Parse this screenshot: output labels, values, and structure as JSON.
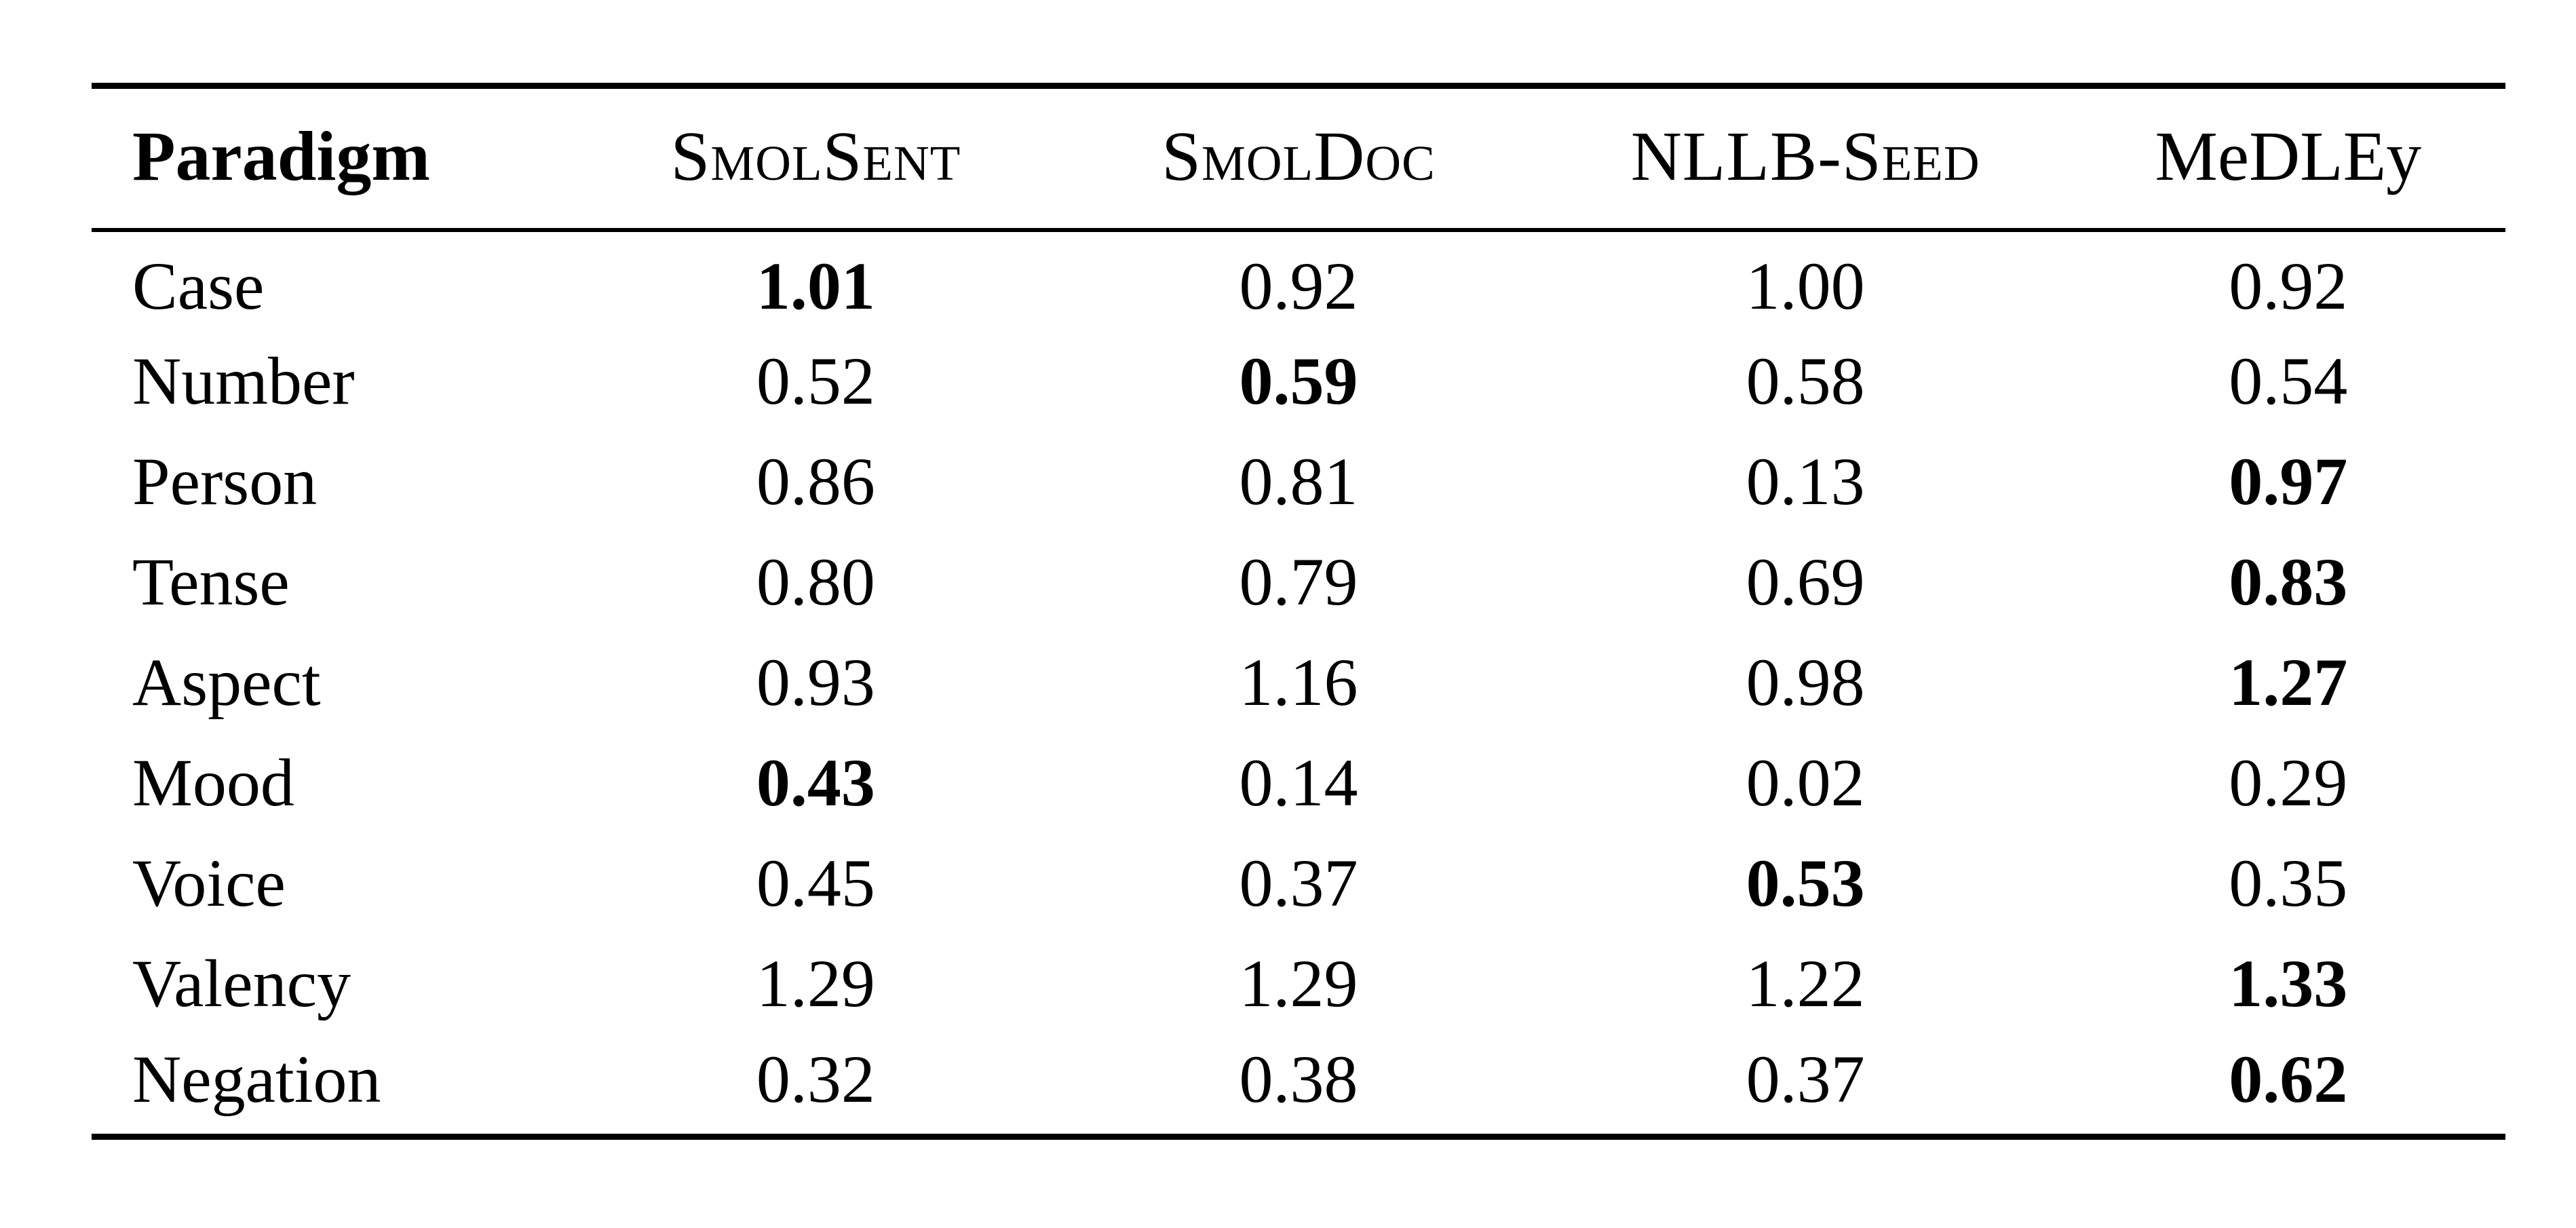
{
  "page": {
    "background_color": "#ffffff",
    "text_color": "#000000"
  },
  "table": {
    "columns": [
      {
        "label": "Paradigm",
        "smallcaps": false,
        "bold": true
      },
      {
        "label": "SmolSent",
        "smallcaps": true,
        "bold": false
      },
      {
        "label": "SmolDoc",
        "smallcaps": true,
        "bold": false
      },
      {
        "label": "NLLB-Seed",
        "smallcaps": true,
        "bold": false
      },
      {
        "label": "MeDLEy",
        "smallcaps": false,
        "bold": false
      }
    ],
    "rows": [
      {
        "paradigm": "Case",
        "values": [
          "1.01",
          "0.92",
          "1.00",
          "0.92"
        ],
        "bold_index": 0
      },
      {
        "paradigm": "Number",
        "values": [
          "0.52",
          "0.59",
          "0.58",
          "0.54"
        ],
        "bold_index": 1
      },
      {
        "paradigm": "Person",
        "values": [
          "0.86",
          "0.81",
          "0.13",
          "0.97"
        ],
        "bold_index": 3
      },
      {
        "paradigm": "Tense",
        "values": [
          "0.80",
          "0.79",
          "0.69",
          "0.83"
        ],
        "bold_index": 3
      },
      {
        "paradigm": "Aspect",
        "values": [
          "0.93",
          "1.16",
          "0.98",
          "1.27"
        ],
        "bold_index": 3
      },
      {
        "paradigm": "Mood",
        "values": [
          "0.43",
          "0.14",
          "0.02",
          "0.29"
        ],
        "bold_index": 0
      },
      {
        "paradigm": "Voice",
        "values": [
          "0.45",
          "0.37",
          "0.53",
          "0.35"
        ],
        "bold_index": 2
      },
      {
        "paradigm": "Valency",
        "values": [
          "1.29",
          "1.29",
          "1.22",
          "1.33"
        ],
        "bold_index": 3
      },
      {
        "paradigm": "Negation",
        "values": [
          "0.32",
          "0.38",
          "0.37",
          "0.62"
        ],
        "bold_index": 3
      }
    ]
  },
  "chart_data": {
    "type": "table",
    "title": "",
    "categories": [
      "Case",
      "Number",
      "Person",
      "Tense",
      "Aspect",
      "Mood",
      "Voice",
      "Valency",
      "Negation"
    ],
    "series": [
      {
        "name": "SmolSent",
        "values": [
          1.01,
          0.52,
          0.86,
          0.8,
          0.93,
          0.43,
          0.45,
          1.29,
          0.32
        ]
      },
      {
        "name": "SmolDoc",
        "values": [
          0.92,
          0.59,
          0.81,
          0.79,
          1.16,
          0.14,
          0.37,
          1.29,
          0.38
        ]
      },
      {
        "name": "NLLB-Seed",
        "values": [
          1.0,
          0.58,
          0.13,
          0.69,
          0.98,
          0.02,
          0.53,
          1.22,
          0.37
        ]
      },
      {
        "name": "MeDLEy",
        "values": [
          0.92,
          0.54,
          0.97,
          0.83,
          1.27,
          0.29,
          0.35,
          1.33,
          0.62
        ]
      }
    ],
    "bold_best_per_row": [
      "SmolSent",
      "SmolDoc",
      "MeDLEy",
      "MeDLEy",
      "MeDLEy",
      "SmolSent",
      "NLLB-Seed",
      "MeDLEy",
      "MeDLEy"
    ]
  }
}
